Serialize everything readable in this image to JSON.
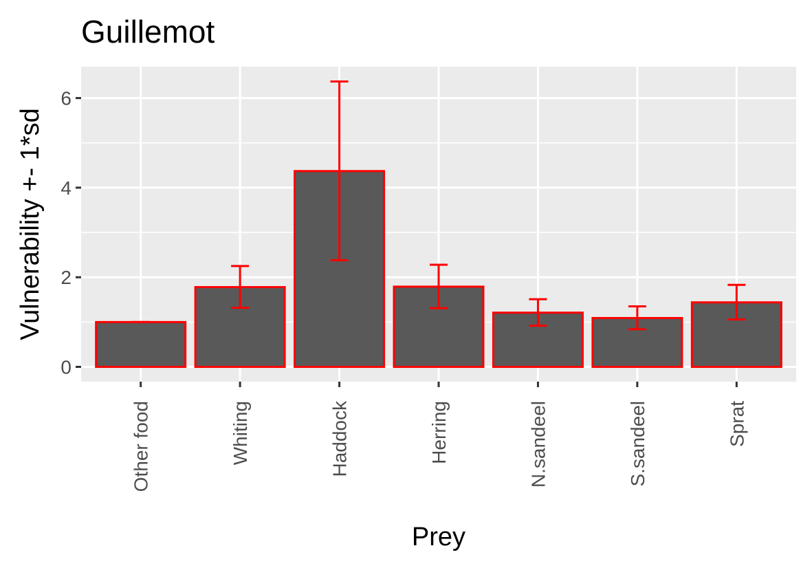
{
  "chart_data": {
    "type": "bar",
    "title": "Guillemot",
    "xlabel": "Prey",
    "ylabel": "Vulnerability +- 1*sd",
    "categories": [
      "Other food",
      "Whiting",
      "Haddock",
      "Herring",
      "N.sandeel",
      "S.sandeel",
      "Sprat"
    ],
    "values": [
      1.0,
      1.78,
      4.37,
      1.79,
      1.21,
      1.09,
      1.44
    ],
    "error_low": [
      1.0,
      1.32,
      2.38,
      1.31,
      0.92,
      0.84,
      1.06
    ],
    "error_high": [
      1.0,
      2.25,
      6.37,
      2.28,
      1.51,
      1.35,
      1.83
    ],
    "ylim": [
      -0.33,
      6.7
    ],
    "yticks": [
      0,
      2,
      4,
      6
    ],
    "grid": true,
    "bar_fill": "#595959",
    "bar_outline": "#ff0000",
    "error_color": "#ff0000",
    "panel_background": "#ebebeb"
  }
}
